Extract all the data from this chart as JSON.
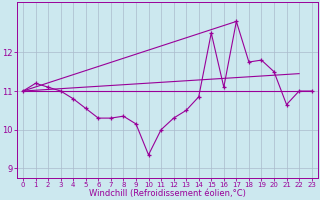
{
  "background_color": "#cce8ef",
  "plot_bg_color": "#cce8ef",
  "line_color": "#990099",
  "grid_color": "#aabbcc",
  "xlabel": "Windchill (Refroidissement éolien,°C)",
  "xlabel_fontsize": 6,
  "xlim": [
    -0.5,
    23.5
  ],
  "ylim": [
    8.75,
    13.3
  ],
  "yticks": [
    9,
    10,
    11,
    12
  ],
  "xticks": [
    0,
    1,
    2,
    3,
    4,
    5,
    6,
    7,
    8,
    9,
    10,
    11,
    12,
    13,
    14,
    15,
    16,
    17,
    18,
    19,
    20,
    21,
    22,
    23
  ],
  "main_y": [
    11.0,
    11.2,
    11.1,
    11.0,
    10.8,
    10.55,
    10.3,
    10.3,
    10.35,
    10.15,
    9.35,
    10.0,
    10.3,
    10.5,
    10.85,
    12.5,
    11.1,
    12.8,
    11.75,
    11.8,
    11.5,
    10.65,
    11.0,
    11.0
  ],
  "flat_line": [
    [
      0,
      23
    ],
    [
      11.0,
      11.0
    ]
  ],
  "rise_line1": [
    [
      0,
      22
    ],
    [
      11.0,
      11.45
    ]
  ],
  "rise_line2": [
    [
      0,
      17
    ],
    [
      11.0,
      12.8
    ]
  ],
  "figwidth": 3.2,
  "figheight": 2.0,
  "dpi": 100
}
